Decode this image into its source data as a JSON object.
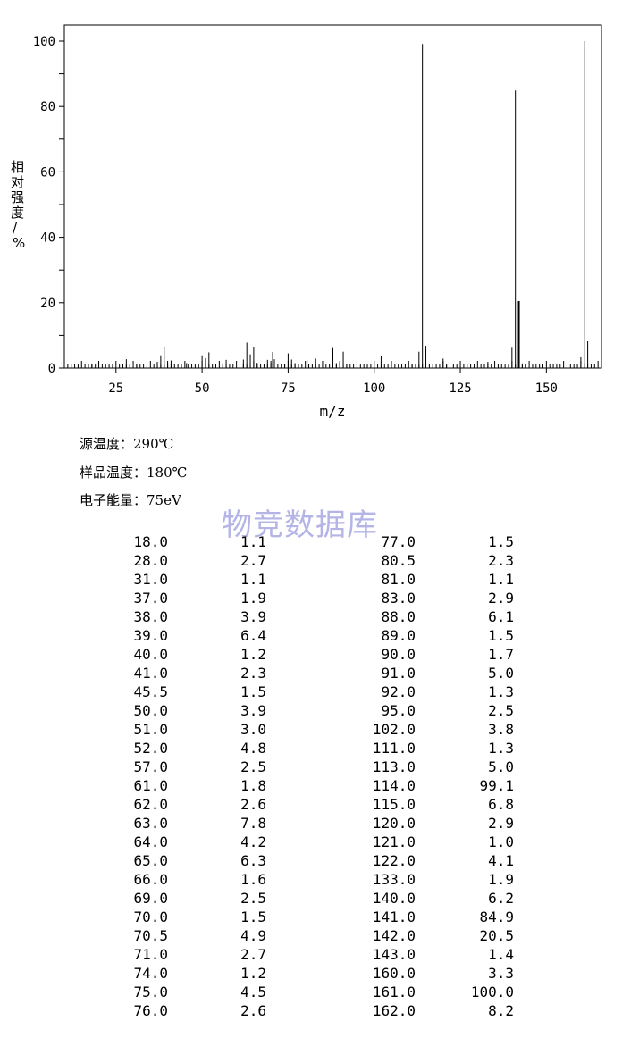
{
  "chart_data": {
    "type": "bar",
    "xlabel": "m/z",
    "ylabel": "相对强度/%",
    "xlim": [
      10,
      166
    ],
    "ylim": [
      0,
      100
    ],
    "xticks": [
      25,
      50,
      75,
      100,
      125,
      150
    ],
    "yticks": [
      0,
      20,
      40,
      60,
      80,
      100
    ],
    "grid": false,
    "peaks": [
      {
        "mz": 18.0,
        "intensity": 1.1
      },
      {
        "mz": 28.0,
        "intensity": 2.7
      },
      {
        "mz": 31.0,
        "intensity": 1.1
      },
      {
        "mz": 37.0,
        "intensity": 1.9
      },
      {
        "mz": 38.0,
        "intensity": 3.9
      },
      {
        "mz": 39.0,
        "intensity": 6.4
      },
      {
        "mz": 40.0,
        "intensity": 1.2
      },
      {
        "mz": 41.0,
        "intensity": 2.3
      },
      {
        "mz": 45.5,
        "intensity": 1.5
      },
      {
        "mz": 50.0,
        "intensity": 3.9
      },
      {
        "mz": 51.0,
        "intensity": 3.0
      },
      {
        "mz": 52.0,
        "intensity": 4.8
      },
      {
        "mz": 57.0,
        "intensity": 2.5
      },
      {
        "mz": 61.0,
        "intensity": 1.8
      },
      {
        "mz": 62.0,
        "intensity": 2.6
      },
      {
        "mz": 63.0,
        "intensity": 7.8
      },
      {
        "mz": 64.0,
        "intensity": 4.2
      },
      {
        "mz": 65.0,
        "intensity": 6.3
      },
      {
        "mz": 66.0,
        "intensity": 1.6
      },
      {
        "mz": 69.0,
        "intensity": 2.5
      },
      {
        "mz": 70.0,
        "intensity": 1.5
      },
      {
        "mz": 70.5,
        "intensity": 4.9
      },
      {
        "mz": 71.0,
        "intensity": 2.7
      },
      {
        "mz": 74.0,
        "intensity": 1.2
      },
      {
        "mz": 75.0,
        "intensity": 4.5
      },
      {
        "mz": 76.0,
        "intensity": 2.6
      },
      {
        "mz": 77.0,
        "intensity": 1.5
      },
      {
        "mz": 80.5,
        "intensity": 2.3
      },
      {
        "mz": 81.0,
        "intensity": 1.1
      },
      {
        "mz": 83.0,
        "intensity": 2.9
      },
      {
        "mz": 88.0,
        "intensity": 6.1
      },
      {
        "mz": 89.0,
        "intensity": 1.5
      },
      {
        "mz": 90.0,
        "intensity": 1.7
      },
      {
        "mz": 91.0,
        "intensity": 5.0
      },
      {
        "mz": 92.0,
        "intensity": 1.3
      },
      {
        "mz": 95.0,
        "intensity": 2.5
      },
      {
        "mz": 102.0,
        "intensity": 3.8
      },
      {
        "mz": 111.0,
        "intensity": 1.3
      },
      {
        "mz": 113.0,
        "intensity": 5.0
      },
      {
        "mz": 114.0,
        "intensity": 99.1
      },
      {
        "mz": 115.0,
        "intensity": 6.8
      },
      {
        "mz": 120.0,
        "intensity": 2.9
      },
      {
        "mz": 121.0,
        "intensity": 1.0
      },
      {
        "mz": 122.0,
        "intensity": 4.1
      },
      {
        "mz": 133.0,
        "intensity": 1.9
      },
      {
        "mz": 140.0,
        "intensity": 6.2
      },
      {
        "mz": 141.0,
        "intensity": 84.9
      },
      {
        "mz": 142.0,
        "intensity": 20.5
      },
      {
        "mz": 143.0,
        "intensity": 1.4
      },
      {
        "mz": 160.0,
        "intensity": 3.3
      },
      {
        "mz": 161.0,
        "intensity": 100.0
      },
      {
        "mz": 162.0,
        "intensity": 8.2
      }
    ]
  },
  "info": {
    "source_temp": "源温度：290℃",
    "sample_temp": "样品温度：180℃",
    "electron_energy": "电子能量：75eV"
  },
  "watermark": "物竞数据库",
  "table": {
    "left": [
      [
        "18.0",
        "1.1"
      ],
      [
        "28.0",
        "2.7"
      ],
      [
        "31.0",
        "1.1"
      ],
      [
        "37.0",
        "1.9"
      ],
      [
        "38.0",
        "3.9"
      ],
      [
        "39.0",
        "6.4"
      ],
      [
        "40.0",
        "1.2"
      ],
      [
        "41.0",
        "2.3"
      ],
      [
        "45.5",
        "1.5"
      ],
      [
        "50.0",
        "3.9"
      ],
      [
        "51.0",
        "3.0"
      ],
      [
        "52.0",
        "4.8"
      ],
      [
        "57.0",
        "2.5"
      ],
      [
        "61.0",
        "1.8"
      ],
      [
        "62.0",
        "2.6"
      ],
      [
        "63.0",
        "7.8"
      ],
      [
        "64.0",
        "4.2"
      ],
      [
        "65.0",
        "6.3"
      ],
      [
        "66.0",
        "1.6"
      ],
      [
        "69.0",
        "2.5"
      ],
      [
        "70.0",
        "1.5"
      ],
      [
        "70.5",
        "4.9"
      ],
      [
        "71.0",
        "2.7"
      ],
      [
        "74.0",
        "1.2"
      ],
      [
        "75.0",
        "4.5"
      ],
      [
        "76.0",
        "2.6"
      ]
    ],
    "right": [
      [
        "77.0",
        "1.5"
      ],
      [
        "80.5",
        "2.3"
      ],
      [
        "81.0",
        "1.1"
      ],
      [
        "83.0",
        "2.9"
      ],
      [
        "88.0",
        "6.1"
      ],
      [
        "89.0",
        "1.5"
      ],
      [
        "90.0",
        "1.7"
      ],
      [
        "91.0",
        "5.0"
      ],
      [
        "92.0",
        "1.3"
      ],
      [
        "95.0",
        "2.5"
      ],
      [
        "102.0",
        "3.8"
      ],
      [
        "111.0",
        "1.3"
      ],
      [
        "113.0",
        "5.0"
      ],
      [
        "114.0",
        "99.1"
      ],
      [
        "115.0",
        "6.8"
      ],
      [
        "120.0",
        "2.9"
      ],
      [
        "121.0",
        "1.0"
      ],
      [
        "122.0",
        "4.1"
      ],
      [
        "133.0",
        "1.9"
      ],
      [
        "140.0",
        "6.2"
      ],
      [
        "141.0",
        "84.9"
      ],
      [
        "142.0",
        "20.5"
      ],
      [
        "143.0",
        "1.4"
      ],
      [
        "160.0",
        "3.3"
      ],
      [
        "161.0",
        "100.0"
      ],
      [
        "162.0",
        "8.2"
      ]
    ]
  }
}
